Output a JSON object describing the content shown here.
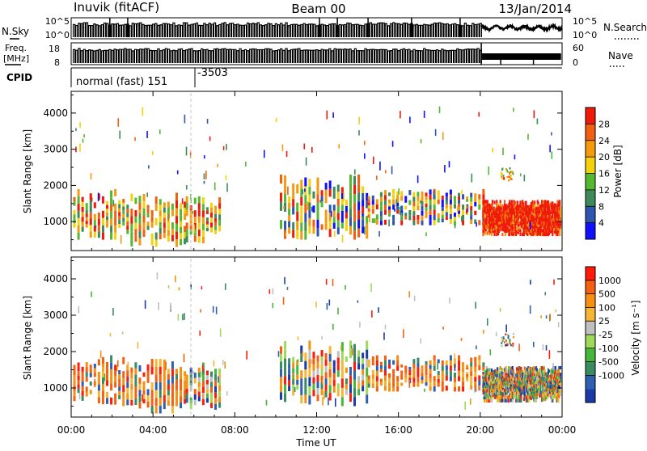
{
  "header": {
    "station": "Inuvik (fitACF)",
    "beam": "Beam 00",
    "date": "13/Jan/2014"
  },
  "strips": {
    "nsky_label": "N.Sky",
    "nsky_ticks": [
      "10^5",
      "10^0"
    ],
    "nsearch_label": "N.Search",
    "nsearch_ticks": [
      "10^5",
      "10^0"
    ],
    "freq_label": "Freq.",
    "freq_unit": "[MHz]",
    "freq_ticks": [
      "18",
      "8"
    ],
    "nave_label": "Nave",
    "nave_ticks": [
      "60",
      "0"
    ],
    "cpid_label": "CPID",
    "cpid_text": "normal (fast) 151",
    "cpid_text2": "-3503"
  },
  "x_axis": {
    "title": "Time UT",
    "ticks": [
      "00:00",
      "04:00",
      "08:00",
      "12:00",
      "16:00",
      "20:00",
      "00:00"
    ],
    "range_hours": [
      0,
      24
    ]
  },
  "colors": {
    "power_scale": [
      "#1010ff",
      "#2f55b0",
      "#3e8a5a",
      "#55b830",
      "#f2d20a",
      "#f59a0c",
      "#f06010",
      "#f01a0a"
    ],
    "velocity_scale": [
      "#ff1a0a",
      "#f56010",
      "#f59010",
      "#f5b535",
      "#c0c0c0",
      "#9fd95a",
      "#45b83a",
      "#3a8a62",
      "#2f5fb0",
      "#1a3aa8"
    ]
  },
  "chart_data": [
    {
      "type": "heatmap",
      "name": "power-panel",
      "ylabel": "Slant Range [km]",
      "yticks": [
        "1000",
        "2000",
        "3000",
        "4000"
      ],
      "ylim": [
        200,
        4600
      ],
      "colorbar_label": "Power [dB]",
      "colorbar_ticks": [
        "4",
        "8",
        "12",
        "16",
        "20",
        "24",
        "28"
      ],
      "colorbar_range": [
        0,
        32
      ],
      "activity": [
        {
          "t_start": 0.1,
          "t_end": 2.7,
          "r_low": 500,
          "r_high": 1900,
          "level": "high"
        },
        {
          "t_start": 2.7,
          "t_end": 5.6,
          "r_low": 300,
          "r_high": 1800,
          "level": "high"
        },
        {
          "t_start": 5.6,
          "t_end": 7.4,
          "r_low": 400,
          "r_high": 1700,
          "level": "high"
        },
        {
          "t_start": 10.2,
          "t_end": 14.5,
          "r_low": 500,
          "r_high": 2300,
          "level": "mixed"
        },
        {
          "t_start": 14.5,
          "t_end": 20.2,
          "r_low": 900,
          "r_high": 1900,
          "level": "mixed"
        },
        {
          "t_start": 20.1,
          "t_end": 23.9,
          "r_low": 600,
          "r_high": 1600,
          "level": "very-high"
        }
      ]
    },
    {
      "type": "heatmap",
      "name": "velocity-panel",
      "ylabel": "Slant Range [km]",
      "yticks": [
        "1000",
        "2000",
        "3000",
        "4000"
      ],
      "ylim": [
        200,
        4600
      ],
      "colorbar_label": "Velocity [m s⁻¹]",
      "colorbar_ticks": [
        "1000",
        "500",
        "100",
        "25",
        "-25",
        "-100",
        "-500",
        "-1000"
      ],
      "activity": [
        {
          "t_start": 0.1,
          "t_end": 2.7,
          "r_low": 500,
          "r_high": 1900,
          "level": "negative"
        },
        {
          "t_start": 2.7,
          "t_end": 5.6,
          "r_low": 300,
          "r_high": 1800,
          "level": "negative"
        },
        {
          "t_start": 5.6,
          "t_end": 7.4,
          "r_low": 400,
          "r_high": 1700,
          "level": "mixed"
        },
        {
          "t_start": 10.2,
          "t_end": 14.5,
          "r_low": 500,
          "r_high": 2300,
          "level": "mixed"
        },
        {
          "t_start": 14.5,
          "t_end": 20.2,
          "r_low": 900,
          "r_high": 1900,
          "level": "negative"
        },
        {
          "t_start": 20.1,
          "t_end": 23.9,
          "r_low": 600,
          "r_high": 1600,
          "level": "mixed"
        }
      ]
    }
  ]
}
